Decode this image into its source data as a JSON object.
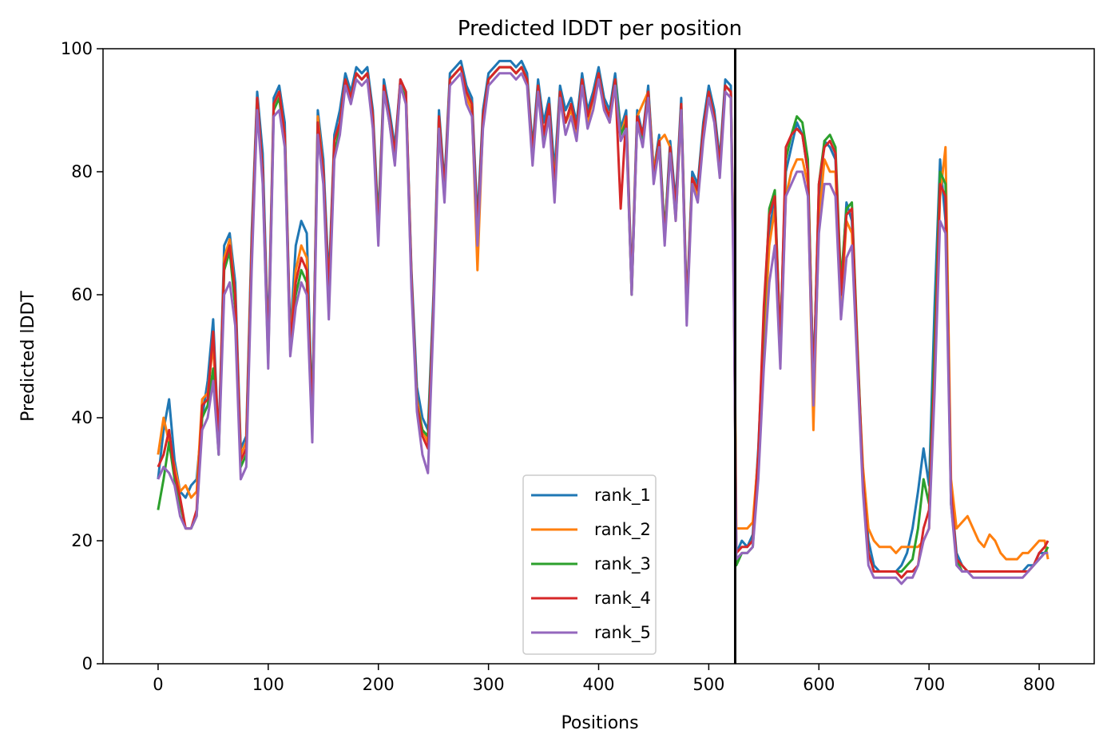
{
  "chart_data": {
    "type": "line",
    "title": "Predicted lDDT per position",
    "xlabel": "Positions",
    "ylabel": "Predicted lDDT",
    "xlim": [
      -50,
      850
    ],
    "ylim": [
      0,
      100
    ],
    "xticks": [
      0,
      100,
      200,
      300,
      400,
      500,
      600,
      700,
      800
    ],
    "yticks": [
      0,
      20,
      40,
      60,
      80,
      100
    ],
    "grid": false,
    "legend_position": "lower-center",
    "vertical_line": {
      "x": 524,
      "color": "#000000"
    },
    "x": [
      0,
      5,
      10,
      15,
      20,
      25,
      30,
      35,
      40,
      45,
      50,
      55,
      60,
      65,
      70,
      75,
      80,
      85,
      90,
      95,
      100,
      105,
      110,
      115,
      120,
      125,
      130,
      135,
      140,
      145,
      150,
      155,
      160,
      165,
      170,
      175,
      180,
      185,
      190,
      195,
      200,
      205,
      210,
      215,
      220,
      225,
      230,
      235,
      240,
      245,
      250,
      255,
      260,
      265,
      270,
      275,
      280,
      285,
      290,
      295,
      300,
      305,
      310,
      315,
      320,
      325,
      330,
      335,
      340,
      345,
      350,
      355,
      360,
      365,
      370,
      375,
      380,
      385,
      390,
      395,
      400,
      405,
      410,
      415,
      420,
      425,
      430,
      435,
      440,
      445,
      450,
      455,
      460,
      465,
      470,
      475,
      480,
      485,
      490,
      495,
      500,
      505,
      510,
      515,
      520,
      523,
      525,
      530,
      535,
      540,
      545,
      550,
      555,
      560,
      565,
      570,
      575,
      580,
      585,
      590,
      595,
      600,
      605,
      610,
      615,
      620,
      625,
      630,
      635,
      640,
      645,
      650,
      655,
      660,
      665,
      670,
      675,
      680,
      685,
      690,
      695,
      700,
      705,
      710,
      715,
      720,
      725,
      730,
      735,
      740,
      745,
      750,
      755,
      760,
      765,
      770,
      775,
      780,
      785,
      790,
      795,
      800,
      805,
      808
    ],
    "series": [
      {
        "name": "rank_1",
        "color": "#1f77b4",
        "values": [
          30,
          38,
          43,
          33,
          28,
          27,
          29,
          30,
          40,
          46,
          56,
          36,
          68,
          70,
          62,
          35,
          37,
          70,
          93,
          83,
          52,
          92,
          94,
          88,
          53,
          68,
          72,
          70,
          40,
          90,
          82,
          62,
          86,
          90,
          96,
          93,
          97,
          96,
          97,
          90,
          72,
          95,
          90,
          84,
          95,
          93,
          64,
          45,
          40,
          38,
          60,
          90,
          78,
          96,
          97,
          98,
          94,
          92,
          72,
          90,
          96,
          97,
          98,
          98,
          98,
          97,
          98,
          96,
          84,
          95,
          88,
          92,
          80,
          94,
          90,
          92,
          88,
          96,
          90,
          93,
          97,
          92,
          90,
          96,
          87,
          90,
          62,
          90,
          86,
          94,
          80,
          86,
          70,
          85,
          75,
          92,
          58,
          80,
          78,
          88,
          94,
          90,
          82,
          95,
          94,
          60,
          18,
          20,
          19,
          21,
          35,
          55,
          70,
          76,
          52,
          80,
          84,
          88,
          86,
          80,
          46,
          75,
          85,
          84,
          82,
          60,
          75,
          72,
          50,
          30,
          20,
          16,
          15,
          15,
          15,
          15,
          16,
          18,
          22,
          28,
          35,
          29,
          58,
          82,
          72,
          28,
          18,
          16,
          15,
          15,
          15,
          15,
          15,
          15,
          15,
          15,
          15,
          15,
          15,
          16,
          16,
          18,
          18,
          18
        ]
      },
      {
        "name": "rank_2",
        "color": "#ff7f0e",
        "values": [
          34,
          40,
          36,
          32,
          28,
          29,
          27,
          28,
          43,
          44,
          52,
          35,
          66,
          69,
          60,
          34,
          36,
          68,
          92,
          80,
          50,
          91,
          93,
          86,
          52,
          64,
          68,
          66,
          38,
          89,
          80,
          60,
          85,
          88,
          95,
          92,
          96,
          95,
          96,
          88,
          70,
          94,
          88,
          82,
          94,
          92,
          62,
          43,
          38,
          36,
          58,
          88,
          76,
          95,
          96,
          97,
          92,
          90,
          64,
          88,
          95,
          96,
          97,
          97,
          97,
          96,
          97,
          95,
          82,
          94,
          86,
          90,
          78,
          93,
          88,
          90,
          86,
          95,
          88,
          92,
          96,
          91,
          88,
          95,
          86,
          89,
          60,
          89,
          91,
          93,
          80,
          85,
          86,
          84,
          72,
          90,
          56,
          79,
          76,
          86,
          93,
          89,
          80,
          94,
          93,
          62,
          22,
          22,
          22,
          23,
          34,
          52,
          68,
          74,
          50,
          76,
          80,
          82,
          82,
          78,
          38,
          72,
          82,
          80,
          80,
          58,
          72,
          70,
          50,
          32,
          22,
          20,
          19,
          19,
          19,
          18,
          19,
          19,
          19,
          19,
          20,
          22,
          50,
          76,
          84,
          30,
          22,
          23,
          24,
          22,
          20,
          19,
          21,
          20,
          18,
          17,
          17,
          17,
          18,
          18,
          19,
          20,
          20,
          17
        ]
      },
      {
        "name": "rank_3",
        "color": "#2ca02c",
        "values": [
          25,
          30,
          36,
          30,
          26,
          22,
          22,
          24,
          40,
          42,
          48,
          34,
          64,
          67,
          58,
          32,
          34,
          66,
          91,
          79,
          49,
          90,
          92,
          85,
          51,
          60,
          64,
          62,
          40,
          88,
          79,
          58,
          83,
          87,
          95,
          92,
          96,
          95,
          96,
          89,
          71,
          94,
          89,
          83,
          94,
          92,
          63,
          42,
          38,
          37,
          58,
          89,
          77,
          95,
          96,
          97,
          93,
          91,
          70,
          89,
          95,
          96,
          97,
          97,
          97,
          96,
          97,
          95,
          83,
          94,
          85,
          91,
          76,
          93,
          88,
          91,
          87,
          95,
          89,
          92,
          96,
          91,
          89,
          95,
          86,
          88,
          60,
          89,
          85,
          93,
          79,
          85,
          70,
          84,
          73,
          91,
          57,
          79,
          77,
          87,
          93,
          89,
          81,
          94,
          93,
          60,
          16,
          18,
          18,
          19,
          33,
          56,
          74,
          77,
          52,
          82,
          86,
          89,
          88,
          82,
          44,
          78,
          85,
          86,
          84,
          62,
          74,
          75,
          52,
          30,
          18,
          15,
          15,
          15,
          15,
          15,
          15,
          16,
          17,
          22,
          30,
          26,
          52,
          80,
          78,
          26,
          17,
          15,
          15,
          15,
          15,
          15,
          15,
          15,
          15,
          15,
          15,
          15,
          15,
          15,
          16,
          17,
          18,
          19
        ]
      },
      {
        "name": "rank_4",
        "color": "#d62728",
        "values": [
          32,
          34,
          38,
          31,
          27,
          22,
          22,
          25,
          42,
          43,
          54,
          36,
          65,
          68,
          60,
          33,
          35,
          67,
          92,
          80,
          50,
          91,
          93,
          86,
          52,
          62,
          66,
          64,
          39,
          88,
          80,
          60,
          85,
          88,
          95,
          92,
          96,
          95,
          96,
          89,
          70,
          94,
          89,
          83,
          95,
          93,
          63,
          42,
          37,
          35,
          58,
          89,
          77,
          95,
          96,
          97,
          93,
          91,
          70,
          89,
          95,
          96,
          97,
          97,
          97,
          96,
          97,
          95,
          83,
          94,
          86,
          91,
          77,
          93,
          88,
          91,
          87,
          95,
          89,
          92,
          96,
          91,
          89,
          95,
          74,
          89,
          61,
          89,
          86,
          93,
          79,
          85,
          69,
          84,
          74,
          91,
          57,
          79,
          77,
          87,
          93,
          89,
          81,
          94,
          93,
          58,
          18,
          19,
          19,
          20,
          34,
          58,
          73,
          76,
          51,
          84,
          86,
          87,
          86,
          80,
          44,
          78,
          84,
          85,
          83,
          60,
          73,
          74,
          51,
          30,
          18,
          15,
          15,
          15,
          15,
          15,
          14,
          15,
          15,
          16,
          22,
          25,
          48,
          78,
          76,
          28,
          17,
          16,
          15,
          15,
          15,
          15,
          15,
          15,
          15,
          15,
          15,
          15,
          15,
          15,
          16,
          18,
          19,
          20
        ]
      },
      {
        "name": "rank_5",
        "color": "#9467bd",
        "values": [
          30,
          32,
          31,
          29,
          24,
          22,
          22,
          24,
          38,
          40,
          46,
          34,
          60,
          62,
          55,
          30,
          32,
          64,
          90,
          78,
          48,
          89,
          90,
          84,
          50,
          58,
          62,
          60,
          36,
          86,
          78,
          56,
          82,
          86,
          94,
          91,
          95,
          94,
          95,
          87,
          68,
          93,
          88,
          81,
          94,
          91,
          61,
          41,
          34,
          31,
          56,
          87,
          75,
          94,
          95,
          96,
          91,
          89,
          68,
          87,
          94,
          95,
          96,
          96,
          96,
          95,
          96,
          94,
          81,
          93,
          84,
          89,
          75,
          92,
          86,
          89,
          85,
          94,
          87,
          90,
          95,
          90,
          88,
          94,
          85,
          87,
          60,
          88,
          84,
          92,
          78,
          84,
          68,
          83,
          72,
          90,
          55,
          78,
          75,
          85,
          92,
          88,
          79,
          93,
          92,
          56,
          17,
          18,
          18,
          19,
          30,
          48,
          62,
          68,
          48,
          76,
          78,
          80,
          80,
          76,
          42,
          70,
          78,
          78,
          76,
          56,
          66,
          68,
          48,
          28,
          16,
          14,
          14,
          14,
          14,
          14,
          13,
          14,
          14,
          16,
          20,
          22,
          44,
          72,
          70,
          26,
          16,
          15,
          15,
          14,
          14,
          14,
          14,
          14,
          14,
          14,
          14,
          14,
          14,
          15,
          16,
          17,
          18,
          18
        ]
      }
    ]
  }
}
